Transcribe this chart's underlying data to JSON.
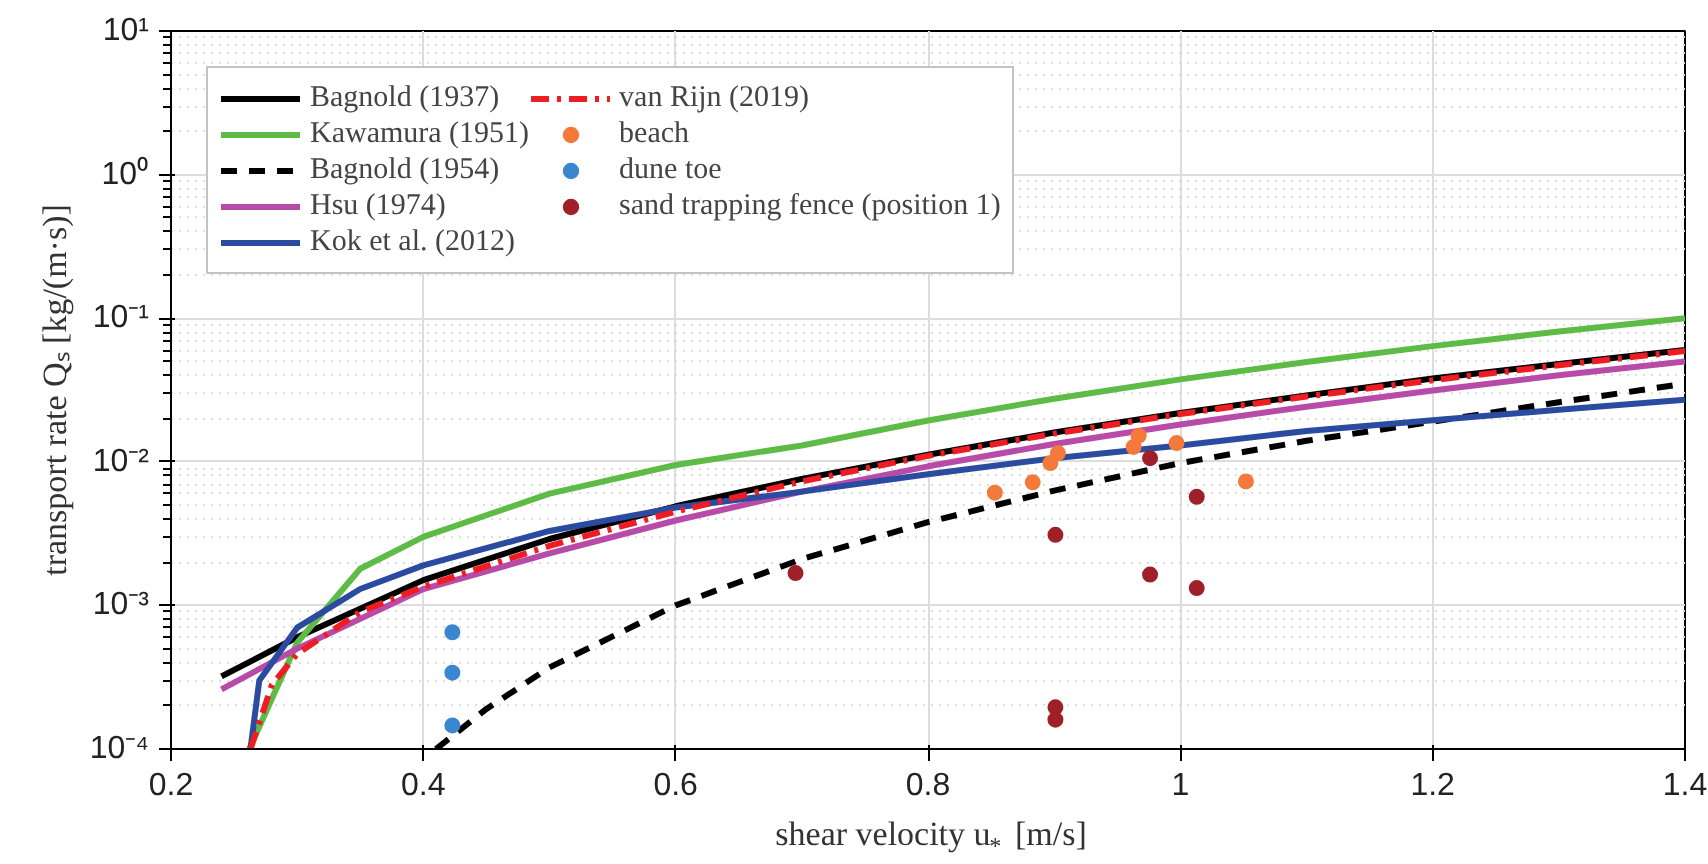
{
  "chart_data": {
    "type": "line",
    "xlabel": "shear velocity u$_{*}$ [m/s]",
    "ylabel": "transport rate Qₛ [kg/(m·s)]",
    "log": "y",
    "grid": true,
    "legend": "top left",
    "xlim": [
      0.2,
      1.4
    ],
    "ylim": [
      0.0001,
      10
    ],
    "xticks": [
      0.2,
      0.4,
      0.6,
      0.8,
      1,
      1.2,
      1.4
    ],
    "yticks": [
      {
        "value": 0.0001,
        "label": "10⁻⁴"
      },
      {
        "value": 0.001,
        "label": "10⁻³"
      },
      {
        "value": 0.01,
        "label": "10⁻²"
      },
      {
        "value": 0.1,
        "label": "10⁻¹"
      },
      {
        "value": 1,
        "label": "10⁰"
      },
      {
        "value": 10,
        "label": "10¹"
      }
    ],
    "series": [
      {
        "name": "Bagnold (1937)",
        "color": "#000000",
        "line_style": "solid",
        "x": [
          0.24,
          0.3,
          0.4,
          0.5,
          0.6,
          0.7,
          0.8,
          0.9,
          1.0,
          1.1,
          1.2,
          1.3,
          1.4
        ],
        "values": [
          0.00032,
          0.0006,
          0.0015,
          0.0029,
          0.0049,
          0.0076,
          0.0112,
          0.016,
          0.0219,
          0.029,
          0.038,
          0.048,
          0.06
        ]
      },
      {
        "name": "Kawamura (1951)",
        "color": "#5dbb46",
        "line_style": "solid",
        "x": [
          0.262,
          0.3,
          0.35,
          0.4,
          0.5,
          0.6,
          0.7,
          0.8,
          0.9,
          1.0,
          1.1,
          1.2,
          1.3,
          1.4
        ],
        "values": [
          0.0001,
          0.00055,
          0.0018,
          0.003,
          0.006,
          0.0095,
          0.013,
          0.0194,
          0.0275,
          0.0375,
          0.0496,
          0.0639,
          0.0807,
          0.1
        ]
      },
      {
        "name": "Bagnold (1954)",
        "color": "#000000",
        "line_style": "dashed",
        "x": [
          0.41,
          0.45,
          0.5,
          0.6,
          0.7,
          0.8,
          0.9,
          1.0,
          1.1,
          1.2,
          1.3,
          1.4
        ],
        "values": [
          0.0001,
          0.00019,
          0.00037,
          0.001,
          0.0021,
          0.0038,
          0.0063,
          0.0098,
          0.014,
          0.019,
          0.026,
          0.035
        ]
      },
      {
        "name": "Hsu (1974)",
        "color": "#b84aa8",
        "line_style": "solid",
        "x": [
          0.24,
          0.3,
          0.4,
          0.5,
          0.6,
          0.7,
          0.8,
          0.9,
          1.0,
          1.1,
          1.2,
          1.3,
          1.4
        ],
        "values": [
          0.00026,
          0.0005,
          0.0013,
          0.0023,
          0.0039,
          0.0062,
          0.0093,
          0.0133,
          0.0182,
          0.0242,
          0.0314,
          0.04,
          0.05
        ]
      },
      {
        "name": "Kok et al. (2012)",
        "color": "#2b4ba0",
        "line_style": "solid",
        "x": [
          0.263,
          0.27,
          0.3,
          0.35,
          0.4,
          0.5,
          0.6,
          0.7,
          0.8,
          0.9,
          1.0,
          1.1,
          1.2,
          1.3,
          1.4
        ],
        "values": [
          0.0001,
          0.0003,
          0.0007,
          0.0013,
          0.0019,
          0.0033,
          0.0048,
          0.0062,
          0.0082,
          0.0106,
          0.013,
          0.0164,
          0.0195,
          0.023,
          0.027
        ]
      },
      {
        "name": "van Rijn (2019)",
        "color": "#ee1d23",
        "line_style": "dashdot",
        "x": [
          0.263,
          0.28,
          0.3,
          0.35,
          0.4,
          0.5,
          0.6,
          0.7,
          0.8,
          0.9,
          1.0,
          1.1,
          1.2,
          1.3,
          1.4
        ],
        "values": [
          0.0001,
          0.00028,
          0.00046,
          0.0009,
          0.00135,
          0.0026,
          0.0045,
          0.0073,
          0.011,
          0.0157,
          0.0215,
          0.0285,
          0.037,
          0.047,
          0.059
        ]
      },
      {
        "name": "beach",
        "type": "scatter",
        "marker": "circle",
        "color": "#f4793a",
        "x": [
          0.853,
          0.883,
          0.897,
          0.903,
          0.963,
          0.967,
          0.997,
          1.052
        ],
        "values": [
          0.0061,
          0.0072,
          0.0098,
          0.0115,
          0.0127,
          0.0152,
          0.0135,
          0.0073
        ]
      },
      {
        "name": "dune toe",
        "type": "scatter",
        "marker": "circle",
        "color": "#3a87d0",
        "x": [
          0.423,
          0.423,
          0.423
        ],
        "values": [
          0.00065,
          0.00034,
          0.000146
        ]
      },
      {
        "name": "sand trapping fence (position 1)",
        "type": "scatter",
        "marker": "circle",
        "color": "#a0202a",
        "x": [
          0.695,
          0.901,
          0.901,
          0.901,
          0.976,
          0.976,
          1.013,
          1.013
        ],
        "values": [
          0.00168,
          0.0031,
          0.000195,
          0.00016,
          0.0106,
          0.00164,
          0.0057,
          0.00132
        ]
      }
    ]
  }
}
